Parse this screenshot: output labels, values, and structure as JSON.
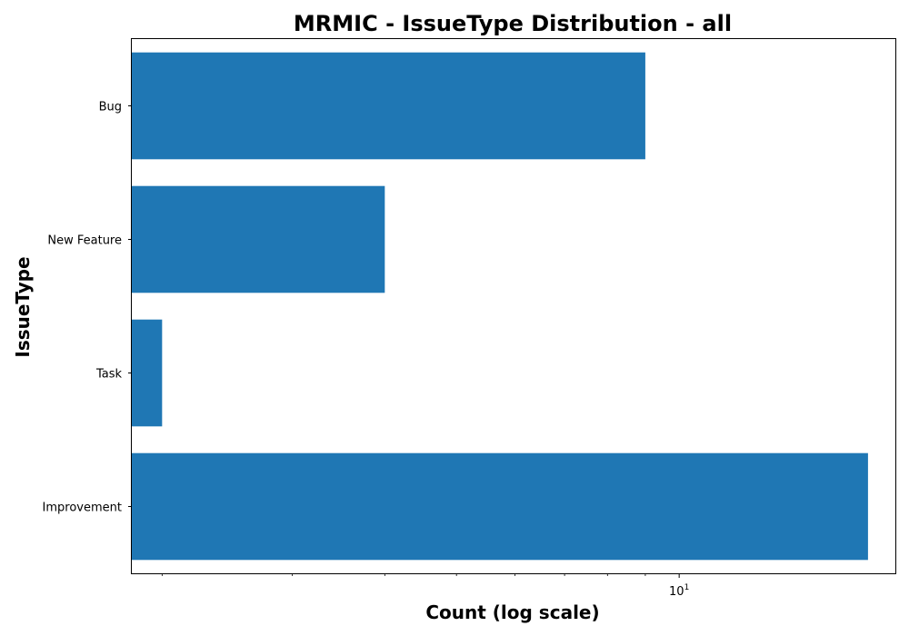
{
  "chart_data": {
    "type": "bar",
    "orientation": "horizontal",
    "title": "MRMIC - IssueType Distribution - all",
    "xlabel": "Count (log scale)",
    "ylabel": "IssueType",
    "x_scale": "log",
    "xlim": [
      1.82,
      19.6
    ],
    "x_major_tick": {
      "base": "10",
      "exponent": "1",
      "value": 10
    },
    "categories": [
      "Bug",
      "New Feature",
      "Task",
      "Improvement"
    ],
    "values": [
      9,
      4,
      2,
      18
    ],
    "bar_color": "#1f77b4",
    "grid": false,
    "legend": "none"
  }
}
